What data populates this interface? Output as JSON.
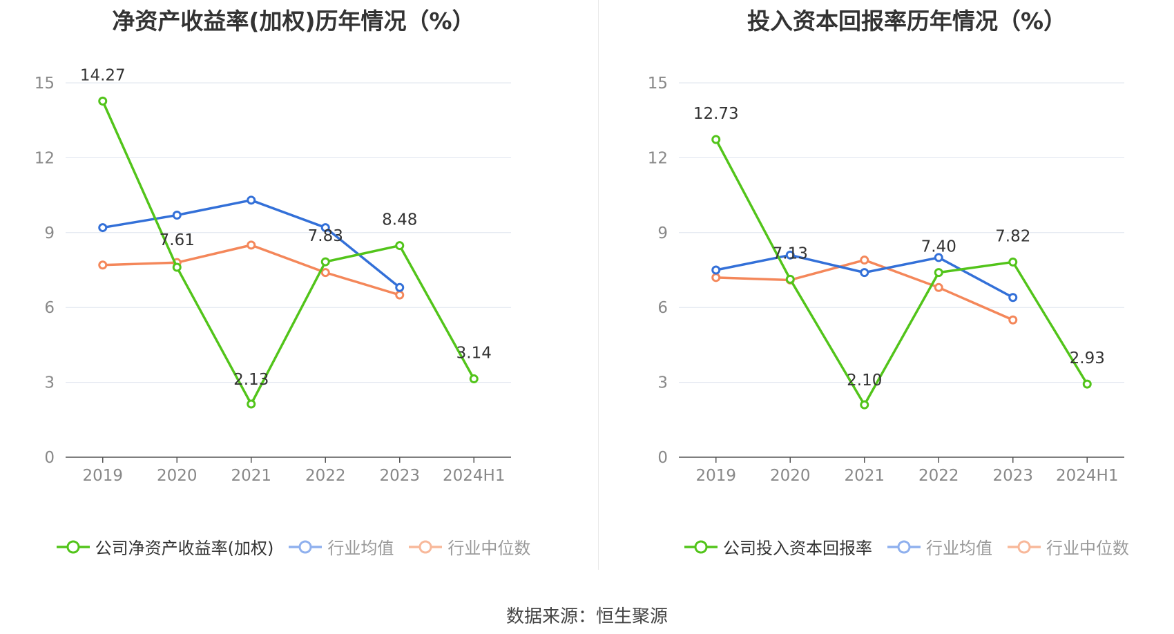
{
  "source_text": "数据来源：恒生聚源",
  "chart_data": [
    {
      "type": "line",
      "title": "净资产收益率(加权)历年情况（%）",
      "categories": [
        "2019",
        "2020",
        "2021",
        "2022",
        "2023",
        "2024H1"
      ],
      "ylim": [
        0,
        15
      ],
      "yticks": [
        0,
        3,
        6,
        9,
        12,
        15
      ],
      "grid": true,
      "legend_position": "bottom",
      "series": [
        {
          "name": "公司净资产收益率(加权)",
          "color": "#52c41a",
          "values": [
            14.27,
            7.61,
            2.13,
            7.83,
            8.48,
            3.14
          ],
          "labels": [
            "14.27",
            "7.61",
            "2.13",
            "7.83",
            "8.48",
            "3.14"
          ]
        },
        {
          "name": "行业均值",
          "color": "#3370d8",
          "values": [
            9.2,
            9.7,
            10.3,
            9.2,
            6.8,
            null
          ]
        },
        {
          "name": "行业中位数",
          "color": "#f4875a",
          "values": [
            7.7,
            7.8,
            8.5,
            7.4,
            6.5,
            null
          ]
        }
      ]
    },
    {
      "type": "line",
      "title": "投入资本回报率历年情况（%）",
      "categories": [
        "2019",
        "2020",
        "2021",
        "2022",
        "2023",
        "2024H1"
      ],
      "ylim": [
        0,
        15
      ],
      "yticks": [
        0,
        3,
        6,
        9,
        12,
        15
      ],
      "grid": true,
      "legend_position": "bottom",
      "series": [
        {
          "name": "公司投入资本回报率",
          "color": "#52c41a",
          "values": [
            12.73,
            7.13,
            2.1,
            7.4,
            7.82,
            2.93
          ],
          "labels": [
            "12.73",
            "7.13",
            "2.10",
            "7.40",
            "7.82",
            "2.93"
          ]
        },
        {
          "name": "行业均值",
          "color": "#3370d8",
          "values": [
            7.5,
            8.1,
            7.4,
            8.0,
            6.4,
            null
          ]
        },
        {
          "name": "行业中位数",
          "color": "#f4875a",
          "values": [
            7.2,
            7.1,
            7.9,
            6.8,
            5.5,
            null
          ]
        }
      ]
    }
  ]
}
